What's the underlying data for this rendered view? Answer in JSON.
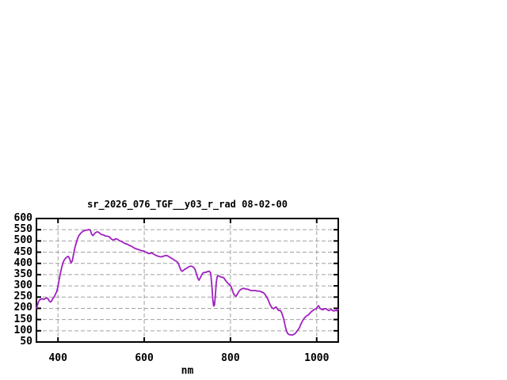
{
  "chart_data": {
    "type": "line",
    "title": "sr_2026_076_TGF__y03_r_rad 08-02-00",
    "xlabel": "nm",
    "ylabel": "",
    "xlim": [
      350,
      1050
    ],
    "ylim": [
      50,
      600
    ],
    "x_ticks": [
      400,
      600,
      800,
      1000
    ],
    "y_ticks": [
      50,
      100,
      150,
      200,
      250,
      300,
      350,
      400,
      450,
      500,
      550,
      600
    ],
    "grid": "dashed horizontal and vertical at ticks",
    "legend": "none",
    "colors": {
      "line": "#A020C0",
      "grid": "#A0A0A0",
      "axis": "#000000",
      "background": "#FFFFFF"
    },
    "series": [
      {
        "name": "sr_2026_076_TGF__y03_r_rad",
        "points": [
          [
            350,
            200
          ],
          [
            352,
            212
          ],
          [
            354,
            224
          ],
          [
            356,
            234
          ],
          [
            358,
            239
          ],
          [
            361,
            241
          ],
          [
            364,
            242
          ],
          [
            367,
            240
          ],
          [
            370,
            243
          ],
          [
            373,
            246
          ],
          [
            376,
            245
          ],
          [
            379,
            235
          ],
          [
            382,
            228
          ],
          [
            385,
            232
          ],
          [
            388,
            244
          ],
          [
            391,
            250
          ],
          [
            394,
            262
          ],
          [
            397,
            275
          ],
          [
            400,
            298
          ],
          [
            403,
            330
          ],
          [
            406,
            360
          ],
          [
            409,
            385
          ],
          [
            412,
            405
          ],
          [
            415,
            417
          ],
          [
            418,
            424
          ],
          [
            421,
            429
          ],
          [
            424,
            431
          ],
          [
            427,
            421
          ],
          [
            430,
            403
          ],
          [
            433,
            410
          ],
          [
            436,
            440
          ],
          [
            439,
            468
          ],
          [
            442,
            490
          ],
          [
            445,
            508
          ],
          [
            448,
            522
          ],
          [
            451,
            531
          ],
          [
            454,
            537
          ],
          [
            457,
            542
          ],
          [
            460,
            545
          ],
          [
            463,
            547
          ],
          [
            466,
            548
          ],
          [
            469,
            549
          ],
          [
            472,
            551
          ],
          [
            475,
            548
          ],
          [
            478,
            530
          ],
          [
            481,
            524
          ],
          [
            484,
            531
          ],
          [
            487,
            537
          ],
          [
            490,
            540
          ],
          [
            493,
            540
          ],
          [
            496,
            536
          ],
          [
            499,
            531
          ],
          [
            502,
            528
          ],
          [
            505,
            527
          ],
          [
            508,
            524
          ],
          [
            511,
            522
          ],
          [
            514,
            521
          ],
          [
            517,
            520
          ],
          [
            520,
            517
          ],
          [
            523,
            510
          ],
          [
            526,
            505
          ],
          [
            529,
            505
          ],
          [
            532,
            508
          ],
          [
            535,
            510
          ],
          [
            538,
            507
          ],
          [
            541,
            503
          ],
          [
            544,
            500
          ],
          [
            547,
            498
          ],
          [
            550,
            495
          ],
          [
            553,
            491
          ],
          [
            556,
            488
          ],
          [
            559,
            487
          ],
          [
            562,
            484
          ],
          [
            565,
            481
          ],
          [
            568,
            478
          ],
          [
            571,
            476
          ],
          [
            574,
            472
          ],
          [
            577,
            468
          ],
          [
            580,
            466
          ],
          [
            583,
            464
          ],
          [
            586,
            462
          ],
          [
            589,
            460
          ],
          [
            592,
            458
          ],
          [
            595,
            456
          ],
          [
            598,
            455
          ],
          [
            601,
            453
          ],
          [
            604,
            450
          ],
          [
            607,
            447
          ],
          [
            610,
            444
          ],
          [
            613,
            444
          ],
          [
            616,
            447
          ],
          [
            619,
            445
          ],
          [
            622,
            441
          ],
          [
            625,
            438
          ],
          [
            628,
            435
          ],
          [
            631,
            433
          ],
          [
            634,
            431
          ],
          [
            637,
            430
          ],
          [
            640,
            429
          ],
          [
            643,
            431
          ],
          [
            646,
            433
          ],
          [
            649,
            435
          ],
          [
            652,
            435
          ],
          [
            655,
            433
          ],
          [
            658,
            429
          ],
          [
            661,
            426
          ],
          [
            664,
            422
          ],
          [
            667,
            419
          ],
          [
            670,
            414
          ],
          [
            673,
            411
          ],
          [
            676,
            408
          ],
          [
            679,
            400
          ],
          [
            682,
            385
          ],
          [
            685,
            370
          ],
          [
            688,
            365
          ],
          [
            691,
            369
          ],
          [
            694,
            374
          ],
          [
            697,
            377
          ],
          [
            700,
            381
          ],
          [
            703,
            384
          ],
          [
            706,
            387
          ],
          [
            709,
            388
          ],
          [
            712,
            386
          ],
          [
            715,
            381
          ],
          [
            718,
            373
          ],
          [
            721,
            355
          ],
          [
            724,
            335
          ],
          [
            727,
            325
          ],
          [
            730,
            336
          ],
          [
            733,
            348
          ],
          [
            736,
            357
          ],
          [
            739,
            360
          ],
          [
            742,
            360
          ],
          [
            745,
            362
          ],
          [
            748,
            364
          ],
          [
            751,
            365
          ],
          [
            754,
            357
          ],
          [
            757,
            300
          ],
          [
            759,
            240
          ],
          [
            761,
            210
          ],
          [
            763,
            215
          ],
          [
            765,
            260
          ],
          [
            767,
            315
          ],
          [
            769,
            340
          ],
          [
            771,
            346
          ],
          [
            774,
            343
          ],
          [
            777,
            340
          ],
          [
            780,
            338
          ],
          [
            783,
            338
          ],
          [
            786,
            332
          ],
          [
            789,
            323
          ],
          [
            792,
            316
          ],
          [
            795,
            310
          ],
          [
            798,
            305
          ],
          [
            801,
            298
          ],
          [
            804,
            283
          ],
          [
            807,
            266
          ],
          [
            810,
            257
          ],
          [
            813,
            254
          ],
          [
            816,
            263
          ],
          [
            819,
            274
          ],
          [
            822,
            281
          ],
          [
            825,
            285
          ],
          [
            828,
            288
          ],
          [
            831,
            289
          ],
          [
            834,
            287
          ],
          [
            837,
            285
          ],
          [
            840,
            285
          ],
          [
            843,
            283
          ],
          [
            846,
            280
          ],
          [
            849,
            279
          ],
          [
            852,
            278
          ],
          [
            855,
            279
          ],
          [
            858,
            279
          ],
          [
            861,
            277
          ],
          [
            864,
            277
          ],
          [
            867,
            277
          ],
          [
            870,
            275
          ],
          [
            873,
            272
          ],
          [
            876,
            270
          ],
          [
            879,
            265
          ],
          [
            882,
            256
          ],
          [
            885,
            247
          ],
          [
            888,
            235
          ],
          [
            891,
            220
          ],
          [
            894,
            209
          ],
          [
            897,
            201
          ],
          [
            900,
            198
          ],
          [
            903,
            203
          ],
          [
            906,
            206
          ],
          [
            909,
            196
          ],
          [
            912,
            190
          ],
          [
            915,
            192
          ],
          [
            918,
            183
          ],
          [
            921,
            168
          ],
          [
            924,
            148
          ],
          [
            927,
            120
          ],
          [
            930,
            98
          ],
          [
            933,
            87
          ],
          [
            936,
            83
          ],
          [
            939,
            82
          ],
          [
            942,
            81
          ],
          [
            945,
            82
          ],
          [
            948,
            85
          ],
          [
            951,
            90
          ],
          [
            954,
            97
          ],
          [
            957,
            105
          ],
          [
            960,
            114
          ],
          [
            963,
            128
          ],
          [
            966,
            140
          ],
          [
            969,
            150
          ],
          [
            972,
            158
          ],
          [
            975,
            164
          ],
          [
            978,
            168
          ],
          [
            981,
            171
          ],
          [
            984,
            178
          ],
          [
            987,
            184
          ],
          [
            990,
            189
          ],
          [
            993,
            193
          ],
          [
            996,
            196
          ],
          [
            999,
            198
          ],
          [
            1002,
            208
          ],
          [
            1004,
            212
          ],
          [
            1006,
            206
          ],
          [
            1008,
            199
          ],
          [
            1010,
            197
          ],
          [
            1013,
            194
          ],
          [
            1016,
            195
          ],
          [
            1019,
            199
          ],
          [
            1022,
            198
          ],
          [
            1025,
            193
          ],
          [
            1028,
            190
          ],
          [
            1031,
            193
          ],
          [
            1034,
            195
          ],
          [
            1037,
            190
          ],
          [
            1040,
            188
          ],
          [
            1043,
            191
          ],
          [
            1046,
            189
          ],
          [
            1049,
            196
          ],
          [
            1050,
            194
          ]
        ]
      }
    ]
  }
}
